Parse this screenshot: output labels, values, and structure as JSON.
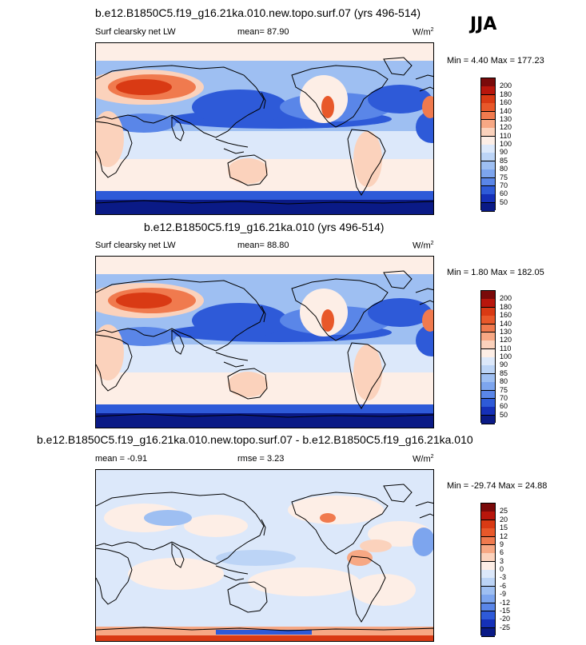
{
  "season": "JJA",
  "unit": "W/m",
  "unit_sup": "2",
  "panels": [
    {
      "title": "b.e12.B1850C5.f19_g16.21ka.010.new.topo.surf.07 (yrs 496-514)",
      "variable": "Surf clearsky net LW",
      "mean_label": "mean=",
      "mean": "87.90",
      "minmax": "Min =   4.40 Max = 177.23",
      "levels": [
        "200",
        "180",
        "160",
        "140",
        "130",
        "120",
        "110",
        "100",
        "90",
        "85",
        "80",
        "75",
        "70",
        "60",
        "50"
      ]
    },
    {
      "title": "b.e12.B1850C5.f19_g16.21ka.010 (yrs 496-514)",
      "variable": "Surf clearsky net LW",
      "mean_label": "mean=",
      "mean": "88.80",
      "minmax": "Min =   1.80 Max = 182.05",
      "levels": [
        "200",
        "180",
        "160",
        "140",
        "130",
        "120",
        "110",
        "100",
        "90",
        "85",
        "80",
        "75",
        "70",
        "60",
        "50"
      ]
    },
    {
      "title": "b.e12.B1850C5.f19_g16.21ka.010.new.topo.surf.07 - b.e12.B1850C5.f19_g16.21ka.010",
      "mean_label": "mean =",
      "mean": "-0.91",
      "rmse_label": "rmse =",
      "rmse": "3.23",
      "minmax": "Min = -29.74 Max =  24.88",
      "levels": [
        "25",
        "20",
        "15",
        "12",
        "9",
        "6",
        "3",
        "0",
        "-3",
        "-6",
        "-9",
        "-12",
        "-15",
        "-20",
        "-25"
      ]
    }
  ],
  "colors": {
    "scale": [
      "#7a0a0a",
      "#b8160c",
      "#d93a14",
      "#e8582a",
      "#f07a4e",
      "#f7a884",
      "#fbd2bc",
      "#fdeee6",
      "#dce8fa",
      "#bcd4f6",
      "#9ebff2",
      "#7da5ee",
      "#5a86e8",
      "#2e5ad8",
      "#1530b8",
      "#0a1a86"
    ],
    "land": "#000000"
  },
  "chart_data": [
    {
      "type": "heatmap",
      "title": "b.e12.B1850C5.f19_g16.21ka.010.new.topo.surf.07 (yrs 496-514)",
      "variable": "Surf clearsky net LW",
      "units": "W/m2",
      "mean": 87.9,
      "min": 4.4,
      "max": 177.23,
      "contour_levels": [
        50,
        60,
        70,
        75,
        80,
        85,
        90,
        100,
        110,
        120,
        130,
        140,
        160,
        180,
        200
      ],
      "colorbar": "diverging blue-red"
    },
    {
      "type": "heatmap",
      "title": "b.e12.B1850C5.f19_g16.21ka.010 (yrs 496-514)",
      "variable": "Surf clearsky net LW",
      "units": "W/m2",
      "mean": 88.8,
      "min": 1.8,
      "max": 182.05,
      "contour_levels": [
        50,
        60,
        70,
        75,
        80,
        85,
        90,
        100,
        110,
        120,
        130,
        140,
        160,
        180,
        200
      ],
      "colorbar": "diverging blue-red"
    },
    {
      "type": "heatmap",
      "title": "b.e12.B1850C5.f19_g16.21ka.010.new.topo.surf.07 - b.e12.B1850C5.f19_g16.21ka.010",
      "units": "W/m2",
      "mean": -0.91,
      "rmse": 3.23,
      "min": -29.74,
      "max": 24.88,
      "contour_levels": [
        -25,
        -20,
        -15,
        -12,
        -9,
        -6,
        -3,
        0,
        3,
        6,
        9,
        12,
        15,
        20,
        25
      ],
      "colorbar": "diverging blue-red"
    }
  ]
}
